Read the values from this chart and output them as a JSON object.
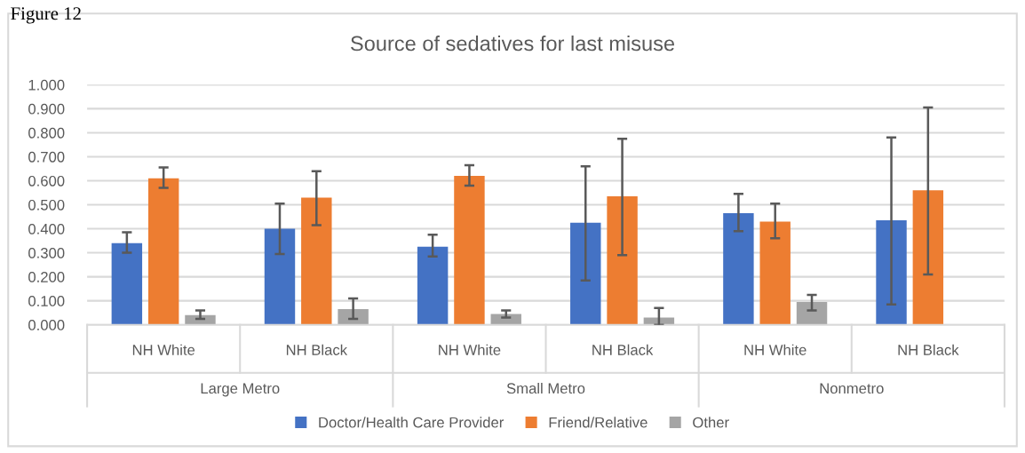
{
  "chart_data": {
    "type": "bar",
    "title": "Source of sedatives for last misuse",
    "categories": [
      "NH White",
      "NH Black",
      "NH White",
      "NH Black",
      "NH White",
      "NH Black"
    ],
    "annotations": [
      "Figure 12",
      "Large Metro",
      "Small Metro",
      "Nonmetro"
    ],
    "series": [
      {
        "name": "Doctor/Health Care Provider",
        "color": "#4472c4",
        "values": [
          0.34,
          0.4,
          0.325,
          0.425,
          0.465,
          0.435
        ],
        "errors": [
          [
            0.3,
            0.385
          ],
          [
            0.295,
            0.505
          ],
          [
            0.285,
            0.375
          ],
          [
            0.185,
            0.66
          ],
          [
            0.39,
            0.545
          ],
          [
            0.085,
            0.78
          ]
        ]
      },
      {
        "name": "Friend/Relative",
        "color": "#ed7d31",
        "values": [
          0.61,
          0.53,
          0.62,
          0.535,
          0.43,
          0.56
        ],
        "errors": [
          [
            0.57,
            0.655
          ],
          [
            0.415,
            0.64
          ],
          [
            0.58,
            0.665
          ],
          [
            0.29,
            0.775
          ],
          [
            0.36,
            0.505
          ],
          [
            0.21,
            0.905
          ]
        ]
      },
      {
        "name": "Other",
        "color": "#a5a5a5",
        "values": [
          0.04,
          0.065,
          0.045,
          0.03,
          0.095,
          null
        ],
        "errors": [
          [
            0.025,
            0.06
          ],
          [
            0.025,
            0.11
          ],
          [
            0.03,
            0.06
          ],
          [
            0.0,
            0.07
          ],
          [
            0.06,
            0.125
          ],
          null
        ]
      }
    ],
    "ylim": [
      0,
      1.0
    ],
    "yticks": [
      {
        "value": 0,
        "label": "0.000"
      },
      {
        "value": 0.1,
        "label": "0.100"
      },
      {
        "value": 0.2,
        "label": "0.200"
      },
      {
        "value": 0.3,
        "label": "0.300"
      },
      {
        "value": 0.4,
        "label": "0.400"
      },
      {
        "value": 0.5,
        "label": "0.500"
      },
      {
        "value": 0.6,
        "label": "0.600"
      },
      {
        "value": 0.7,
        "label": "0.700"
      },
      {
        "value": 0.8,
        "label": "0.800"
      },
      {
        "value": 0.9,
        "label": "0.900"
      },
      {
        "value": 1.0,
        "label": "1.000"
      }
    ],
    "grid": "y",
    "legend": "bottom"
  }
}
